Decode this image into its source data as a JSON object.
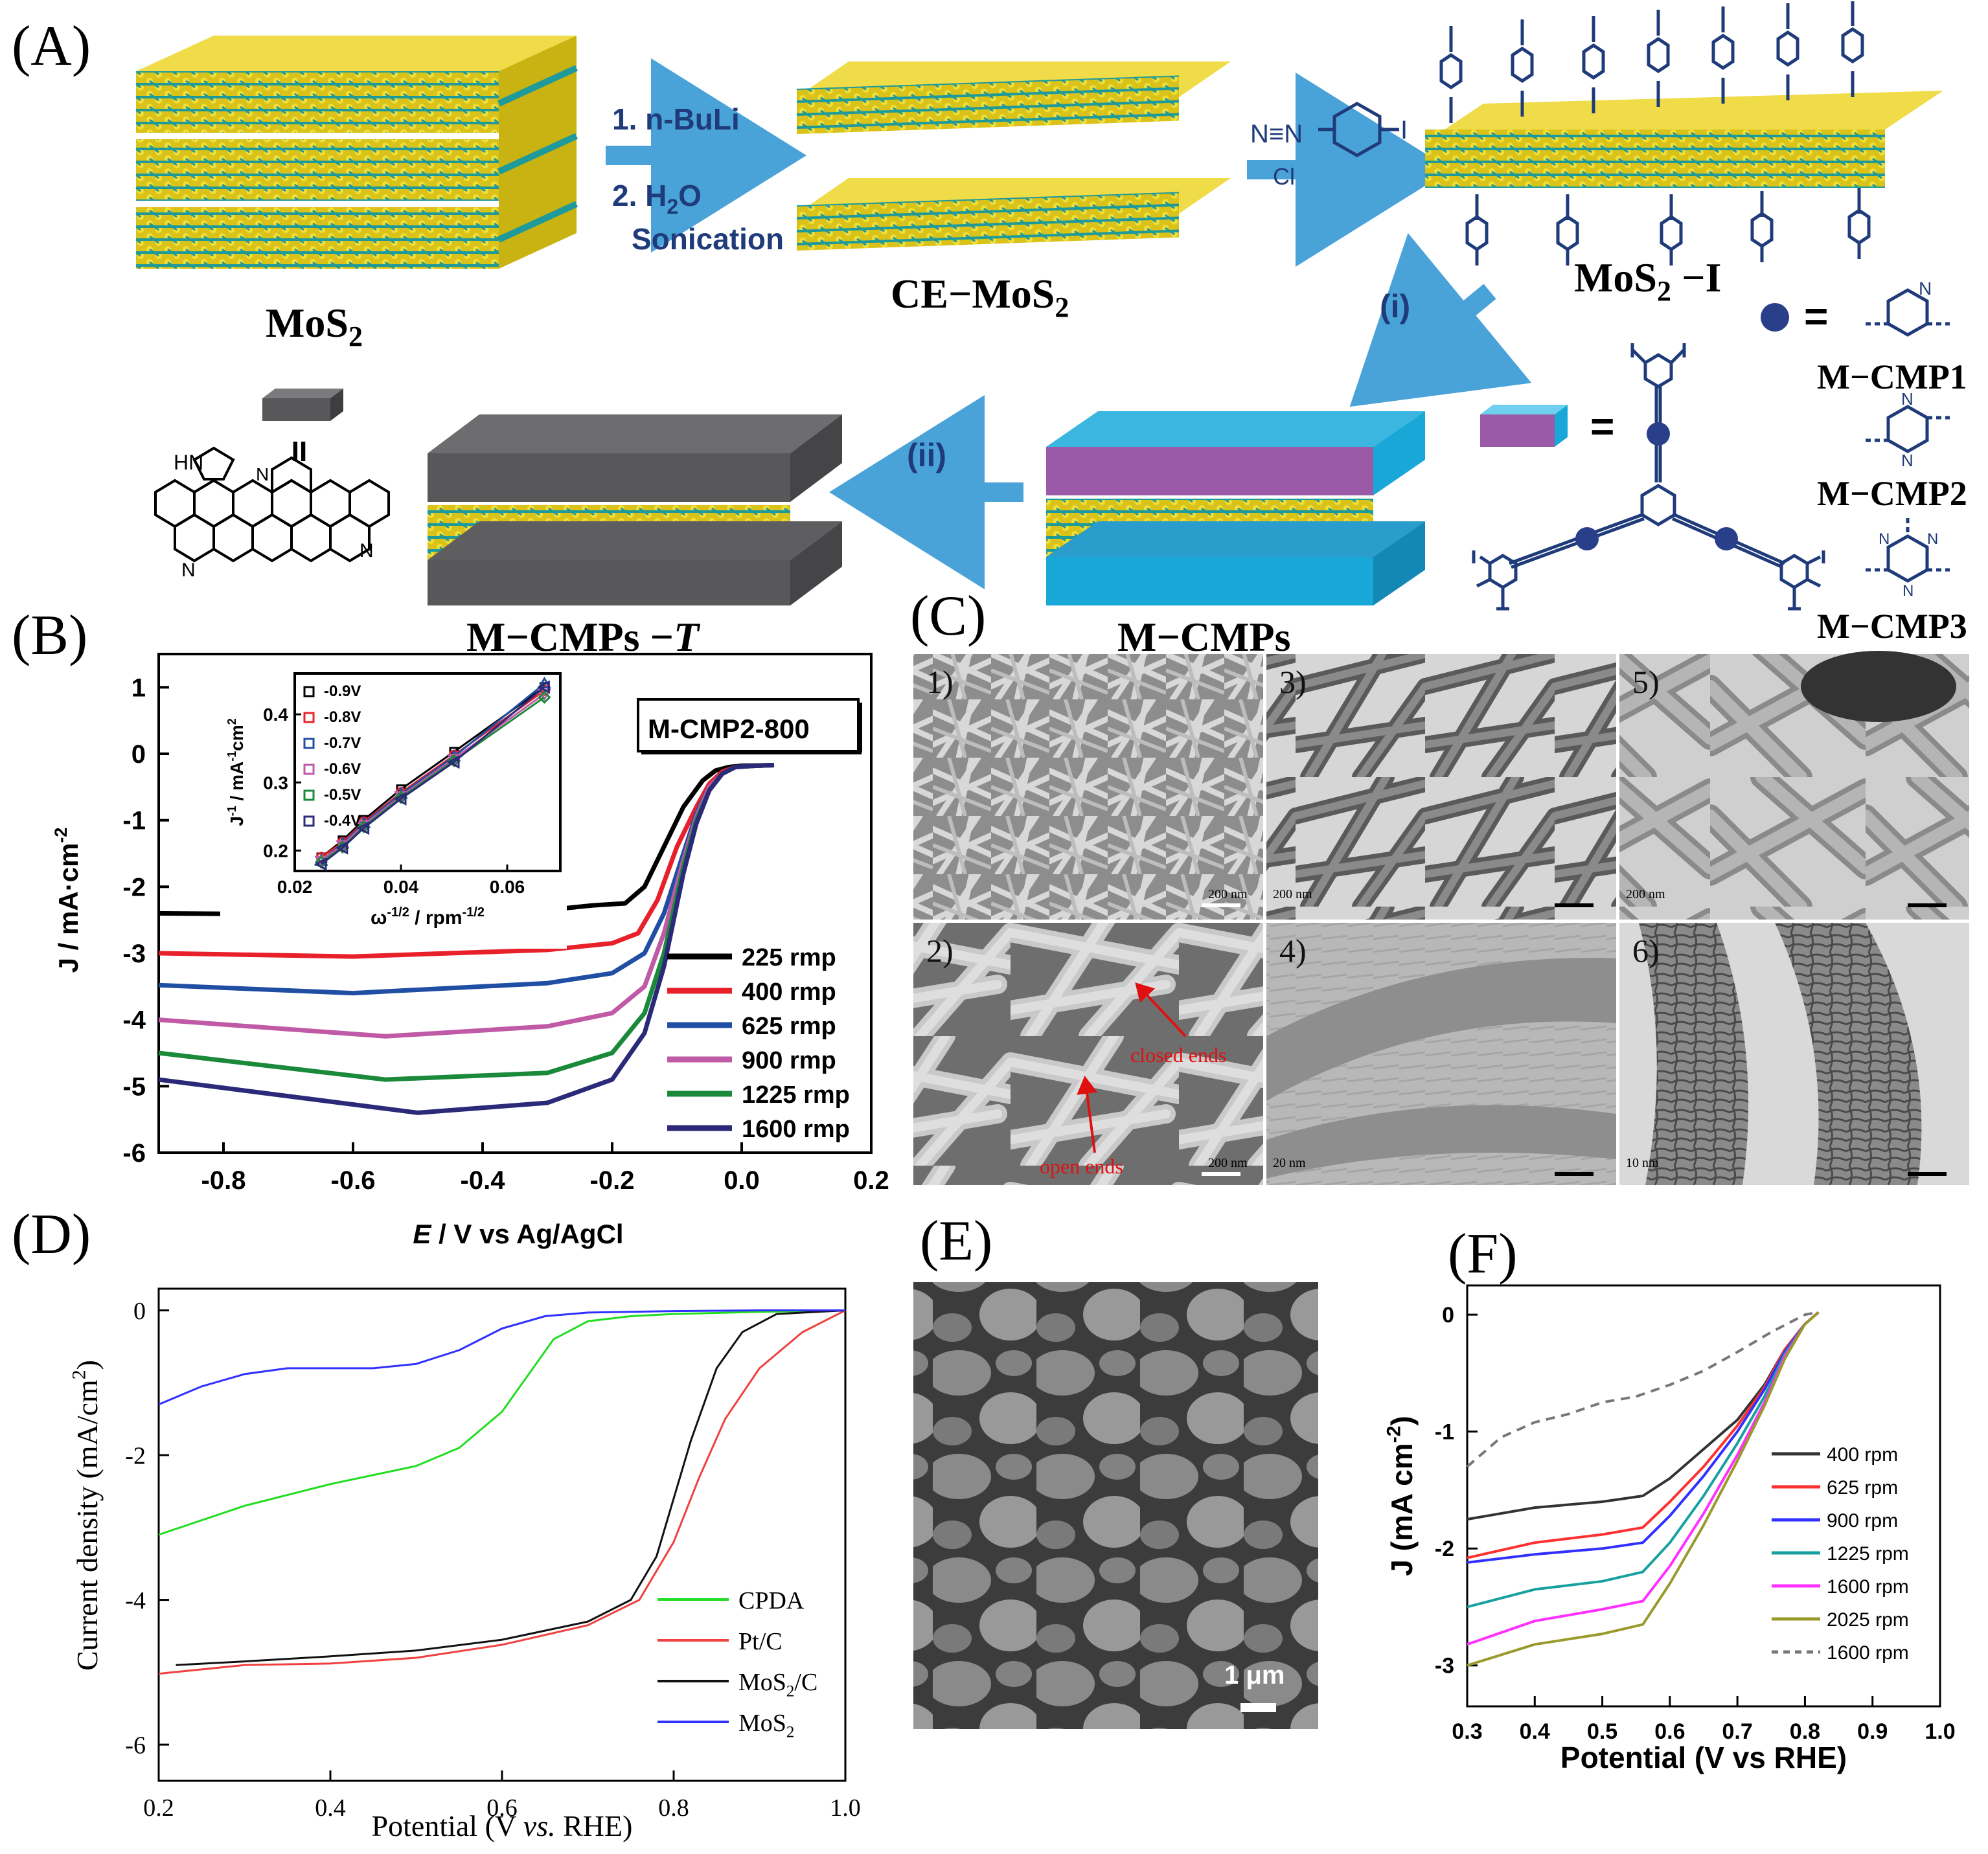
{
  "panels": {
    "A": {
      "label": "(A)",
      "mos2": "MoS",
      "mos2_sub": "2",
      "step1": "1. n-BuLi",
      "step2": "2. H",
      "step2_sub": "2",
      "step2_tail": "O",
      "step3": "Sonication",
      "ce_mos2": "CE−MoS",
      "ce_mos2_sub": "2",
      "mos2_i": "MoS",
      "mos2_i_sub": "2",
      "mos2_i_tail": " −I",
      "step_i": "(i)",
      "step_ii": "(ii)",
      "mcmps": "M−CMPs",
      "mcmps_t": "M−CMPs −",
      "mcmps_t_italic": "T",
      "equals": "=",
      "cmp1": "M−CMP1",
      "cmp2": "M−CMP2",
      "cmp3": "M−CMP3",
      "reagent_n": "N≡N",
      "reagent_cl": "Cl",
      "reagent_i": "I",
      "hn": "HN",
      "n": "N",
      "ii": "II"
    },
    "B": {
      "label": "(B)",
      "box_label": "M-CMP2-800"
    },
    "C": {
      "label": "(C)",
      "tiles": [
        {
          "num": "1)",
          "scale": "200 nm"
        },
        {
          "num": "3)",
          "scale": "200 nm"
        },
        {
          "num": "5)",
          "scale": "200 nm"
        },
        {
          "num": "2)",
          "scale": "200 nm"
        },
        {
          "num": "4)",
          "scale": "20 nm"
        },
        {
          "num": "6)",
          "scale": "10 nm"
        }
      ],
      "closed_ends": "closed ends",
      "open_ends": "open ends"
    },
    "D": {
      "label": "(D)"
    },
    "E": {
      "label": "(E)",
      "scale": "1 μm"
    },
    "F": {
      "label": "(F)"
    }
  },
  "chart_data": [
    {
      "id": "B",
      "type": "line",
      "xlabel": "E / V vs Ag/AgCl",
      "ylabel": "J / mA·cm",
      "ylabel_sup": "-2",
      "xlim": [
        -0.9,
        0.2
      ],
      "ylim": [
        -6,
        1.5
      ],
      "xticks": [
        "-0.8",
        "-0.6",
        "-0.4",
        "-0.2",
        "0.0",
        "0.2"
      ],
      "yticks": [
        "1",
        "0",
        "-1",
        "-2",
        "-3",
        "-4",
        "-5",
        "-6"
      ],
      "legend_position": "bottom-right",
      "series": [
        {
          "name": "225 rmp",
          "color": "#000000",
          "x": [
            -0.9,
            -0.6,
            -0.3,
            -0.23,
            -0.18,
            -0.15,
            -0.12,
            -0.09,
            -0.06,
            -0.04,
            -0.02,
            0.0,
            0.05
          ],
          "y": [
            -2.4,
            -2.42,
            -2.35,
            -2.28,
            -2.25,
            -2.0,
            -1.4,
            -0.8,
            -0.4,
            -0.25,
            -0.2,
            -0.18,
            -0.17
          ]
        },
        {
          "name": "400 rmp",
          "color": "#e8202a",
          "x": [
            -0.9,
            -0.6,
            -0.3,
            -0.2,
            -0.16,
            -0.13,
            -0.1,
            -0.07,
            -0.05,
            -0.03,
            -0.01,
            0.02,
            0.05
          ],
          "y": [
            -3.0,
            -3.05,
            -2.95,
            -2.85,
            -2.7,
            -2.2,
            -1.4,
            -0.8,
            -0.45,
            -0.27,
            -0.2,
            -0.18,
            -0.17
          ]
        },
        {
          "name": "625 rmp",
          "color": "#1f4ea3",
          "x": [
            -0.9,
            -0.6,
            -0.3,
            -0.2,
            -0.15,
            -0.12,
            -0.09,
            -0.07,
            -0.05,
            -0.03,
            -0.01,
            0.02,
            0.05
          ],
          "y": [
            -3.48,
            -3.6,
            -3.45,
            -3.3,
            -3.0,
            -2.4,
            -1.5,
            -0.9,
            -0.5,
            -0.3,
            -0.2,
            -0.18,
            -0.17
          ]
        },
        {
          "name": "900 rmp",
          "color": "#c05aa6",
          "x": [
            -0.9,
            -0.55,
            -0.3,
            -0.2,
            -0.15,
            -0.12,
            -0.09,
            -0.07,
            -0.05,
            -0.03,
            -0.01,
            0.02,
            0.05
          ],
          "y": [
            -4.0,
            -4.25,
            -4.1,
            -3.9,
            -3.5,
            -2.7,
            -1.6,
            -0.95,
            -0.5,
            -0.3,
            -0.2,
            -0.18,
            -0.17
          ]
        },
        {
          "name": "1225 rmp",
          "color": "#1a8a3a",
          "x": [
            -0.9,
            -0.55,
            -0.3,
            -0.2,
            -0.15,
            -0.12,
            -0.09,
            -0.07,
            -0.05,
            -0.03,
            -0.01,
            0.02,
            0.05
          ],
          "y": [
            -4.5,
            -4.9,
            -4.8,
            -4.5,
            -3.9,
            -3.0,
            -1.7,
            -1.0,
            -0.55,
            -0.3,
            -0.2,
            -0.18,
            -0.17
          ]
        },
        {
          "name": "1600 rmp",
          "color": "#2a2a78",
          "x": [
            -0.9,
            -0.5,
            -0.3,
            -0.2,
            -0.15,
            -0.12,
            -0.09,
            -0.07,
            -0.05,
            -0.03,
            -0.01,
            0.02,
            0.05
          ],
          "y": [
            -4.9,
            -5.4,
            -5.25,
            -4.9,
            -4.2,
            -3.2,
            -1.8,
            -1.05,
            -0.55,
            -0.3,
            -0.2,
            -0.18,
            -0.17
          ]
        }
      ],
      "inset": {
        "type": "scatter",
        "xlabel": "ω",
        "xlabel_sup": "-1/2",
        "xlabel_tail": " / rpm",
        "xlabel_tail_sup": "-1/2",
        "ylabel": "J",
        "ylabel_sup": "-1",
        "ylabel_tail": " / mA",
        "ylabel_tail_sup": "-1",
        "ylabel_end": "cm",
        "ylabel_end_sup": "2",
        "xlim": [
          0.02,
          0.07
        ],
        "ylim": [
          0.17,
          0.46
        ],
        "xticks": [
          "0.02",
          "0.04",
          "0.06"
        ],
        "yticks": [
          "0.2",
          "0.3",
          "0.4"
        ],
        "series": [
          {
            "name": "-0.9V",
            "color": "#000000",
            "marker": "square",
            "x": [
              0.025,
              0.029,
              0.033,
              0.04,
              0.05,
              0.067
            ],
            "y": [
              0.19,
              0.215,
              0.245,
              0.29,
              0.345,
              0.44
            ]
          },
          {
            "name": "-0.8V",
            "color": "#e8202a",
            "marker": "circle",
            "x": [
              0.025,
              0.029,
              0.033,
              0.04,
              0.05,
              0.067
            ],
            "y": [
              0.19,
              0.212,
              0.242,
              0.285,
              0.34,
              0.435
            ]
          },
          {
            "name": "-0.7V",
            "color": "#1f4ea3",
            "marker": "triangle-up",
            "x": [
              0.025,
              0.029,
              0.033,
              0.04,
              0.05,
              0.067
            ],
            "y": [
              0.185,
              0.21,
              0.24,
              0.283,
              0.338,
              0.445
            ]
          },
          {
            "name": "-0.6V",
            "color": "#c05aa6",
            "marker": "triangle-down",
            "x": [
              0.025,
              0.029,
              0.033,
              0.04,
              0.05,
              0.067
            ],
            "y": [
              0.185,
              0.208,
              0.238,
              0.28,
              0.335,
              0.43
            ]
          },
          {
            "name": "-0.5V",
            "color": "#1a8a3a",
            "marker": "diamond",
            "x": [
              0.025,
              0.029,
              0.033,
              0.04,
              0.05,
              0.067
            ],
            "y": [
              0.183,
              0.205,
              0.235,
              0.278,
              0.332,
              0.425
            ]
          },
          {
            "name": "-0.4V",
            "color": "#2a2a78",
            "marker": "triangle-left",
            "x": [
              0.025,
              0.029,
              0.033,
              0.04,
              0.05,
              0.067
            ],
            "y": [
              0.18,
              0.204,
              0.233,
              0.276,
              0.33,
              0.44
            ]
          }
        ]
      }
    },
    {
      "id": "D",
      "type": "line",
      "xlabel": "Potential (V ",
      "xlabel_italic": "vs.",
      "xlabel_tail": " RHE)",
      "ylabel": "Current density (mA/cm",
      "ylabel_sup": "2",
      "ylabel_tail": ")",
      "xlim": [
        0.2,
        1.0
      ],
      "ylim": [
        -6.5,
        0.3
      ],
      "xticks": [
        "0.2",
        "0.4",
        "0.6",
        "0.8",
        "1.0"
      ],
      "yticks": [
        "0",
        "-2",
        "-4",
        "-6"
      ],
      "legend_position": "bottom-right",
      "series": [
        {
          "name": "CPDA",
          "color": "#22dd22",
          "x": [
            0.2,
            0.3,
            0.4,
            0.5,
            0.55,
            0.6,
            0.63,
            0.66,
            0.7,
            0.75,
            0.8,
            0.9,
            1.0
          ],
          "y": [
            -3.1,
            -2.7,
            -2.4,
            -2.15,
            -1.9,
            -1.4,
            -0.9,
            -0.4,
            -0.15,
            -0.08,
            -0.05,
            -0.02,
            0.0
          ]
        },
        {
          "name": "Pt/C",
          "color": "#f04040",
          "x": [
            0.2,
            0.3,
            0.4,
            0.5,
            0.6,
            0.7,
            0.76,
            0.8,
            0.83,
            0.86,
            0.9,
            0.95,
            1.0
          ],
          "y": [
            -5.02,
            -4.9,
            -4.88,
            -4.8,
            -4.62,
            -4.35,
            -4.0,
            -3.2,
            -2.3,
            -1.5,
            -0.8,
            -0.3,
            0.0
          ]
        },
        {
          "name": "MoS/C",
          "name_sub": "2",
          "color": "#111111",
          "x": [
            0.22,
            0.3,
            0.4,
            0.5,
            0.6,
            0.7,
            0.75,
            0.78,
            0.8,
            0.82,
            0.85,
            0.88,
            0.92,
            1.0
          ],
          "y": [
            -4.9,
            -4.85,
            -4.78,
            -4.7,
            -4.55,
            -4.3,
            -4.0,
            -3.4,
            -2.6,
            -1.8,
            -0.8,
            -0.3,
            -0.05,
            0.0
          ]
        },
        {
          "name": "MoS",
          "name_sub": "2",
          "color": "#3030ff",
          "x": [
            0.2,
            0.25,
            0.3,
            0.35,
            0.45,
            0.5,
            0.55,
            0.6,
            0.65,
            0.7,
            0.8,
            0.9,
            1.0
          ],
          "y": [
            -1.3,
            -1.05,
            -0.88,
            -0.8,
            -0.8,
            -0.74,
            -0.55,
            -0.25,
            -0.08,
            -0.03,
            -0.01,
            0.0,
            0.0
          ]
        }
      ]
    },
    {
      "id": "F",
      "type": "line",
      "xlabel": "Potential (V vs RHE)",
      "ylabel": "J (mA cm",
      "ylabel_sup": "-2",
      "ylabel_tail": ")",
      "xlim": [
        0.3,
        1.0
      ],
      "ylim": [
        -3.35,
        0.25
      ],
      "xticks": [
        "0.3",
        "0.4",
        "0.5",
        "0.6",
        "0.7",
        "0.8",
        "0.9",
        "1.0"
      ],
      "yticks": [
        "0",
        "-1",
        "-2",
        "-3"
      ],
      "legend_position": "right",
      "series": [
        {
          "name": "400 rpm",
          "color": "#333333",
          "dash": false,
          "x": [
            0.3,
            0.4,
            0.5,
            0.56,
            0.6,
            0.65,
            0.7,
            0.74,
            0.77,
            0.8,
            0.82
          ],
          "y": [
            -1.75,
            -1.65,
            -1.6,
            -1.55,
            -1.4,
            -1.15,
            -0.9,
            -0.6,
            -0.3,
            -0.08,
            0.02
          ]
        },
        {
          "name": "625 rpm",
          "color": "#ff3030",
          "dash": false,
          "x": [
            0.3,
            0.4,
            0.5,
            0.56,
            0.6,
            0.65,
            0.7,
            0.74,
            0.77,
            0.8,
            0.82
          ],
          "y": [
            -2.08,
            -1.95,
            -1.88,
            -1.82,
            -1.6,
            -1.3,
            -0.95,
            -0.62,
            -0.3,
            -0.08,
            0.02
          ]
        },
        {
          "name": "900 rpm",
          "color": "#3030ff",
          "dash": false,
          "x": [
            0.3,
            0.4,
            0.5,
            0.56,
            0.6,
            0.65,
            0.7,
            0.74,
            0.77,
            0.8,
            0.82
          ],
          "y": [
            -2.12,
            -2.05,
            -2.0,
            -1.95,
            -1.72,
            -1.38,
            -1.0,
            -0.64,
            -0.32,
            -0.08,
            0.02
          ]
        },
        {
          "name": "1225 rpm",
          "color": "#18a0a0",
          "dash": false,
          "x": [
            0.3,
            0.4,
            0.5,
            0.56,
            0.6,
            0.65,
            0.7,
            0.74,
            0.77,
            0.8,
            0.82
          ],
          "y": [
            -2.5,
            -2.35,
            -2.28,
            -2.2,
            -1.95,
            -1.55,
            -1.1,
            -0.7,
            -0.34,
            -0.08,
            0.02
          ]
        },
        {
          "name": "1600 rpm",
          "color": "#ff30ff",
          "dash": false,
          "x": [
            0.3,
            0.4,
            0.5,
            0.56,
            0.6,
            0.65,
            0.7,
            0.74,
            0.77,
            0.8,
            0.82
          ],
          "y": [
            -2.82,
            -2.62,
            -2.52,
            -2.45,
            -2.15,
            -1.7,
            -1.2,
            -0.75,
            -0.36,
            -0.08,
            0.02
          ]
        },
        {
          "name": "2025 rpm",
          "color": "#9a9a2a",
          "dash": false,
          "x": [
            0.3,
            0.4,
            0.5,
            0.56,
            0.6,
            0.65,
            0.7,
            0.74,
            0.77,
            0.8,
            0.82
          ],
          "y": [
            -3.0,
            -2.82,
            -2.73,
            -2.65,
            -2.3,
            -1.8,
            -1.25,
            -0.78,
            -0.38,
            -0.08,
            0.02
          ]
        },
        {
          "name": "1600 rpm",
          "color": "#777777",
          "dash": true,
          "x": [
            0.3,
            0.35,
            0.4,
            0.45,
            0.5,
            0.55,
            0.6,
            0.65,
            0.7,
            0.75,
            0.8,
            0.82
          ],
          "y": [
            -1.3,
            -1.05,
            -0.92,
            -0.85,
            -0.75,
            -0.7,
            -0.6,
            -0.48,
            -0.32,
            -0.15,
            0.0,
            0.02
          ]
        }
      ]
    }
  ],
  "colors": {
    "teal": "#1e9a9c",
    "yellow": "#e8d020",
    "arrow": "#4aa3d8",
    "navy": "#1f3b7a",
    "slab": "#5a5a5c",
    "cyan": "#19a7d8",
    "violet": "#9a5aa8"
  }
}
